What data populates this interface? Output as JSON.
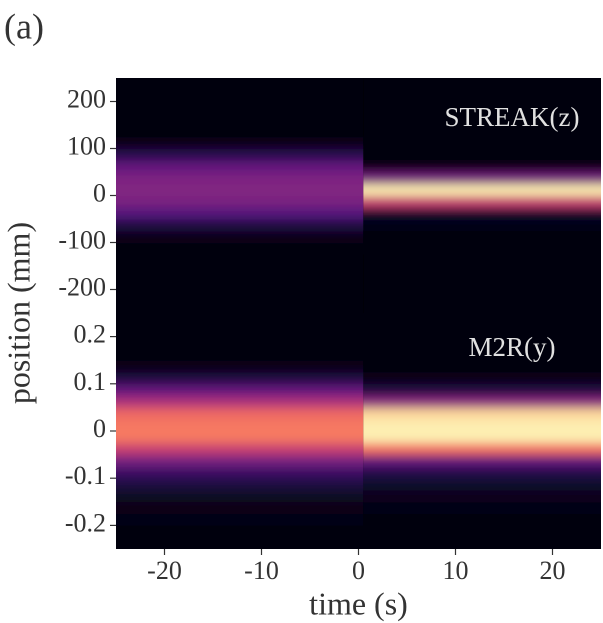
{
  "panel_label": "(a)",
  "ylabel": "position (mm)",
  "colormap": "magma",
  "chart_data": [
    {
      "type": "heatmap",
      "annotation": "STREAK(z)",
      "xbins": [
        -25,
        0.5,
        25
      ],
      "ybins": [
        -250,
        -225,
        -200,
        -175,
        -150,
        -125,
        -100,
        -75,
        -50,
        -25,
        0,
        25,
        50,
        75,
        100,
        125,
        150,
        175,
        200,
        225,
        250
      ],
      "values": [
        [
          0.01,
          0.01,
          0.01,
          0.01,
          0.01,
          0.02,
          0.04,
          0.12,
          0.26,
          0.36,
          0.38,
          0.37,
          0.3,
          0.15,
          0.04,
          0.01,
          0.01,
          0.01,
          0.01,
          0.01
        ],
        [
          0.01,
          0.01,
          0.01,
          0.01,
          0.01,
          0.01,
          0.01,
          0.03,
          0.08,
          0.55,
          0.97,
          0.35,
          0.04,
          0.01,
          0.01,
          0.01,
          0.01,
          0.01,
          0.01,
          0.01
        ]
      ],
      "xlim": [
        -25,
        25
      ],
      "ylim": [
        -250,
        250
      ],
      "yticks": [
        -200,
        -100,
        0,
        100,
        200
      ]
    },
    {
      "type": "heatmap",
      "annotation": "M2R(y)",
      "xlabel": "time (s)",
      "xbins": [
        -25,
        0.5,
        25
      ],
      "ybins": [
        -0.25,
        -0.225,
        -0.2,
        -0.175,
        -0.15,
        -0.125,
        -0.1,
        -0.075,
        -0.05,
        -0.025,
        0,
        0.025,
        0.05,
        0.075,
        0.1,
        0.125,
        0.15,
        0.175,
        0.2,
        0.225,
        0.25
      ],
      "values": [
        [
          0.02,
          0.02,
          0.03,
          0.04,
          0.06,
          0.12,
          0.2,
          0.35,
          0.55,
          0.72,
          0.72,
          0.68,
          0.48,
          0.3,
          0.12,
          0.04,
          0.02,
          0.02,
          0.02,
          0.02
        ],
        [
          0.02,
          0.02,
          0.02,
          0.03,
          0.05,
          0.08,
          0.14,
          0.3,
          0.7,
          0.97,
          0.97,
          0.92,
          0.4,
          0.12,
          0.04,
          0.02,
          0.02,
          0.02,
          0.02,
          0.02
        ]
      ],
      "xlim": [
        -25,
        25
      ],
      "ylim": [
        -0.25,
        0.25
      ],
      "yticks": [
        -0.2,
        -0.1,
        0,
        0.1,
        0.2
      ],
      "xticks": [
        -20,
        -10,
        0,
        10,
        20
      ]
    }
  ]
}
